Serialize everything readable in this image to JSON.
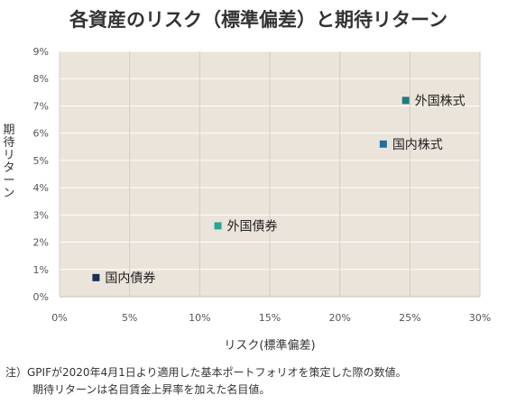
{
  "chart_data": {
    "type": "scatter",
    "title": "各資産のリスク（標準偏差）と期待リターン",
    "xlabel": "リスク(標準偏差)",
    "ylabel": "期待リターン",
    "xlim": [
      0,
      30
    ],
    "ylim": [
      0,
      9
    ],
    "x_ticks": [
      "0%",
      "5%",
      "10%",
      "15%",
      "20%",
      "25%",
      "30%"
    ],
    "y_ticks": [
      "0%",
      "1%",
      "2%",
      "3%",
      "4%",
      "5%",
      "6%",
      "7%",
      "8%",
      "9%"
    ],
    "grid": true,
    "plot_background": "#ebe4da",
    "points": [
      {
        "label": "国内債券",
        "x": 2.6,
        "y": 0.7,
        "color": "#1c2e55"
      },
      {
        "label": "外国債券",
        "x": 11.3,
        "y": 2.6,
        "color": "#2aa59a"
      },
      {
        "label": "国内株式",
        "x": 23.1,
        "y": 5.6,
        "color": "#1f6e9f"
      },
      {
        "label": "外国株式",
        "x": 24.7,
        "y": 7.2,
        "color": "#1f7b80"
      }
    ]
  },
  "note": {
    "line1": "注）GPIFが2020年4月1日より適用した基本ポートフォリオを策定した際の数値。",
    "line2": "期待リターンは名目賃金上昇率を加えた名目値。"
  }
}
